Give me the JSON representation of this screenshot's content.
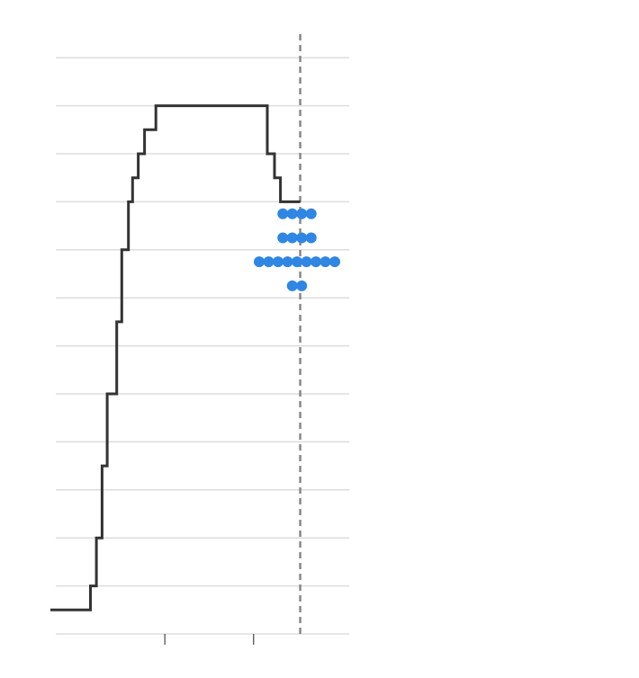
{
  "chart_data": {
    "type": "line",
    "title": "",
    "xlabel": "",
    "ylabel": "",
    "grid": true,
    "ylim": [
      0,
      12.5
    ],
    "xlim": [
      0,
      1
    ],
    "series": [
      {
        "line_style": "step",
        "color": "#333333",
        "points": [
          {
            "x": 0.0,
            "y": 0.5
          },
          {
            "x": 0.134,
            "y": 0.5
          },
          {
            "x": 0.134,
            "y": 1
          },
          {
            "x": 0.154,
            "y": 1
          },
          {
            "x": 0.154,
            "y": 2
          },
          {
            "x": 0.173,
            "y": 2
          },
          {
            "x": 0.173,
            "y": 3.5
          },
          {
            "x": 0.19,
            "y": 3.5
          },
          {
            "x": 0.19,
            "y": 5
          },
          {
            "x": 0.222,
            "y": 5
          },
          {
            "x": 0.222,
            "y": 6.5
          },
          {
            "x": 0.239,
            "y": 6.5
          },
          {
            "x": 0.239,
            "y": 8
          },
          {
            "x": 0.261,
            "y": 8
          },
          {
            "x": 0.261,
            "y": 9
          },
          {
            "x": 0.275,
            "y": 9
          },
          {
            "x": 0.275,
            "y": 9.5
          },
          {
            "x": 0.294,
            "y": 9.5
          },
          {
            "x": 0.294,
            "y": 10
          },
          {
            "x": 0.315,
            "y": 10
          },
          {
            "x": 0.315,
            "y": 10.5
          },
          {
            "x": 0.353,
            "y": 10.5
          },
          {
            "x": 0.353,
            "y": 11
          },
          {
            "x": 0.726,
            "y": 11
          },
          {
            "x": 0.726,
            "y": 10
          },
          {
            "x": 0.75,
            "y": 10
          },
          {
            "x": 0.75,
            "y": 9.5
          },
          {
            "x": 0.77,
            "y": 9.5
          },
          {
            "x": 0.77,
            "y": 9
          },
          {
            "x": 0.836,
            "y": 9
          }
        ]
      }
    ],
    "reference_line": {
      "x": 0.836,
      "style": "dashed",
      "color": "#888888"
    },
    "x_ticks": [
      0.383,
      0.68
    ],
    "dot_plot": {
      "color": "#2f86e3",
      "rows": [
        {
          "y": 8.75,
          "count": 4
        },
        {
          "y": 8.25,
          "count": 4
        },
        {
          "y": 7.75,
          "count": 9
        },
        {
          "y": 7.25,
          "count": 2
        }
      ]
    }
  }
}
